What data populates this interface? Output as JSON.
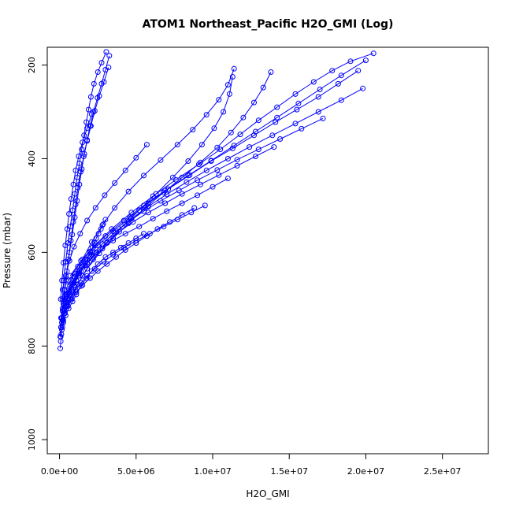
{
  "chart_data": {
    "type": "line",
    "title": "ATOM1 Northeast_Pacific H2O_GMI (Log)",
    "xlabel": "H2O_GMI",
    "ylabel": "Pressure (mbar)",
    "xlim": [
      -800000,
      28000000
    ],
    "ylim": [
      1030,
      162
    ],
    "y_reversed": true,
    "x_ticks": [
      0,
      5000000,
      10000000,
      15000000,
      20000000,
      25000000
    ],
    "x_tick_labels": [
      "0.0e+00",
      "5.0e+06",
      "1.0e+07",
      "1.5e+07",
      "2.0e+07",
      "2.5e+07"
    ],
    "y_ticks": [
      200,
      400,
      600,
      800,
      1000
    ],
    "y_tick_labels": [
      "200",
      "400",
      "600",
      "800",
      "1000"
    ],
    "grid": false,
    "series_color": "#0000ff",
    "marker": "open-circle",
    "series": [
      {
        "x": [
          50000,
          80000,
          120000,
          180000,
          250000,
          320000,
          420000,
          520000,
          650000,
          800000,
          950000,
          1100000,
          1250000,
          1400000,
          1600000,
          1800000,
          2000000,
          2150000,
          2300000,
          2400000,
          2550000,
          2700000,
          2850000,
          3000000
        ],
        "y": [
          805,
          790,
          775,
          760,
          745,
          730,
          715,
          700,
          690,
          680,
          670,
          660,
          650,
          640,
          628,
          615,
          600,
          590,
          580,
          570,
          560,
          550,
          540,
          530
        ]
      },
      {
        "x": [
          80000,
          150000,
          250000,
          400000,
          600000,
          850000,
          1100000,
          1400000,
          1750000,
          2100000,
          2500000,
          3000000,
          3500000,
          4000000,
          4500000,
          5000000,
          5500000
        ],
        "y": [
          780,
          765,
          750,
          735,
          720,
          705,
          690,
          672,
          655,
          640,
          625,
          610,
          600,
          590,
          580,
          570,
          560
        ]
      },
      {
        "x": [
          100000,
          200000,
          350000,
          550000,
          800000,
          1100000,
          1500000,
          2000000,
          2500000,
          3100000,
          3700000,
          4300000,
          5000000,
          5700000,
          6400000,
          7200000,
          8000000,
          8800000
        ],
        "y": [
          760,
          745,
          730,
          715,
          700,
          685,
          670,
          655,
          640,
          625,
          610,
          595,
          580,
          565,
          550,
          535,
          520,
          505
        ]
      },
      {
        "x": [
          150000,
          300000,
          500000,
          750000,
          1050000,
          1400000,
          1800000,
          2300000,
          2900000,
          3500000,
          4200000,
          5000000,
          5900000,
          6800000,
          7700000,
          8600000,
          9500000
        ],
        "y": [
          740,
          725,
          710,
          695,
          680,
          665,
          650,
          635,
          620,
          605,
          590,
          575,
          560,
          545,
          530,
          515,
          500
        ]
      },
      {
        "x": [
          200000,
          400000,
          650000,
          950000,
          1300000,
          1700000,
          2200000,
          2800000,
          3500000,
          4300000,
          5200000,
          6100000,
          7000000,
          8000000,
          9000000,
          10000000,
          11000000
        ],
        "y": [
          725,
          705,
          685,
          665,
          645,
          628,
          610,
          592,
          575,
          560,
          545,
          528,
          512,
          495,
          478,
          460,
          442
        ]
      },
      {
        "x": [
          250000,
          500000,
          850000,
          1250000,
          1800000,
          2400000,
          3100000,
          3900000,
          4800000,
          5800000,
          6900000,
          8000000,
          9200000,
          10400000,
          11600000,
          12800000,
          14000000
        ],
        "y": [
          710,
          690,
          668,
          645,
          622,
          600,
          578,
          556,
          535,
          515,
          495,
          475,
          455,
          435,
          415,
          395,
          375
        ]
      },
      {
        "x": [
          300000,
          600000,
          1000000,
          1500000,
          2100000,
          2800000,
          3600000,
          4500000,
          5500000,
          6600000,
          7800000,
          9000000,
          10300000,
          11600000,
          13000000,
          14400000,
          15800000,
          17200000
        ],
        "y": [
          700,
          678,
          655,
          630,
          605,
          582,
          558,
          535,
          512,
          490,
          468,
          446,
          424,
          402,
          380,
          358,
          336,
          314
        ]
      },
      {
        "x": [
          400000,
          800000,
          1300000,
          2000000,
          2800000,
          3700000,
          4700000,
          5800000,
          7000000,
          8300000,
          9600000,
          11000000,
          12400000,
          13900000,
          15400000,
          16900000,
          18400000,
          19800000
        ],
        "y": [
          690,
          665,
          638,
          610,
          582,
          555,
          528,
          502,
          476,
          450,
          425,
          400,
          375,
          350,
          325,
          300,
          275,
          250
        ]
      },
      {
        "x": [
          500000,
          1000000,
          1700000,
          2500000,
          3500000,
          4600000,
          5800000,
          7100000,
          8500000,
          9900000,
          11300000,
          12700000,
          14100000,
          15500000,
          16900000,
          18200000,
          19500000
        ],
        "y": [
          672,
          645,
          615,
          585,
          555,
          525,
          495,
          465,
          435,
          405,
          378,
          350,
          322,
          295,
          268,
          240,
          212
        ]
      },
      {
        "x": [
          600000,
          1200000,
          2000000,
          3000000,
          4200000,
          5500000,
          6900000,
          8400000,
          9900000,
          11400000,
          12800000,
          14200000,
          15600000,
          17000000,
          18400000,
          20000000
        ],
        "y": [
          660,
          630,
          598,
          565,
          532,
          500,
          468,
          436,
          404,
          372,
          342,
          312,
          282,
          252,
          222,
          190
        ]
      },
      {
        "x": [
          700000,
          1400000,
          2300000,
          3400000,
          4700000,
          6100000,
          7600000,
          9100000,
          10500000,
          11800000,
          13000000,
          14200000,
          15400000,
          16600000,
          17800000,
          19000000,
          20500000
        ],
        "y": [
          650,
          618,
          585,
          550,
          515,
          480,
          445,
          412,
          380,
          348,
          318,
          290,
          262,
          236,
          212,
          192,
          175
        ]
      },
      {
        "x": [
          350000,
          700000,
          1200000,
          1800000,
          2600000,
          3500000,
          4500000,
          5600000,
          6800000,
          8000000,
          9200000,
          10300000,
          11200000,
          12000000,
          12700000,
          13300000,
          13800000
        ],
        "y": [
          730,
          700,
          668,
          635,
          602,
          570,
          538,
          505,
          472,
          440,
          408,
          376,
          344,
          312,
          280,
          248,
          215
        ]
      },
      {
        "x": [
          450000,
          900000,
          1500000,
          2200000,
          3100000,
          4100000,
          5200000,
          6300000,
          7400000,
          8400000,
          9300000,
          10100000,
          10700000,
          11100000,
          11300000
        ],
        "y": [
          715,
          685,
          650,
          615,
          580,
          545,
          510,
          475,
          440,
          405,
          370,
          335,
          300,
          262,
          225
        ]
      },
      {
        "x": [
          300000,
          600000,
          1000000,
          1500000,
          2100000,
          2800000,
          3600000,
          4500000,
          5500000,
          6600000,
          7700000,
          8700000,
          9600000,
          10400000,
          11000000,
          11400000
        ],
        "y": [
          720,
          688,
          652,
          615,
          578,
          542,
          505,
          470,
          436,
          403,
          370,
          338,
          306,
          274,
          242,
          208
        ]
      },
      {
        "x": [
          200000,
          400000,
          650000,
          950000,
          1350000,
          1800000,
          2350000,
          2950000,
          3600000,
          4300000,
          5000000,
          5700000
        ],
        "y": [
          680,
          650,
          618,
          588,
          560,
          532,
          505,
          478,
          452,
          425,
          398,
          370
        ]
      },
      {
        "x": [
          50000,
          100000,
          180000,
          280000,
          400000,
          550000,
          700000,
          850000,
          1000000,
          1150000,
          1300000,
          1450000,
          1600000,
          1750000,
          1900000,
          2050000,
          2250000,
          2500000,
          2750000,
          3050000
        ],
        "y": [
          780,
          740,
          700,
          660,
          620,
          580,
          545,
          510,
          475,
          440,
          410,
          380,
          350,
          322,
          295,
          268,
          240,
          215,
          195,
          172
        ]
      },
      {
        "x": [
          100000,
          200000,
          330000,
          480000,
          650000,
          830000,
          1000000,
          1150000,
          1300000,
          1450000,
          1620000,
          1800000,
          2000000,
          2220000,
          2480000,
          2750000,
          3000000,
          3250000
        ],
        "y": [
          760,
          720,
          680,
          640,
          600,
          562,
          525,
          490,
          455,
          422,
          390,
          360,
          330,
          300,
          270,
          240,
          210,
          180
        ]
      },
      {
        "x": [
          150000,
          280000,
          420000,
          580000,
          740000,
          900000,
          1050000,
          1200000,
          1380000,
          1580000,
          1800000,
          2050000,
          2300000,
          2600000,
          2900000,
          3200000
        ],
        "y": [
          750,
          705,
          660,
          615,
          575,
          535,
          498,
          462,
          428,
          395,
          362,
          330,
          298,
          266,
          236,
          205
        ]
      },
      {
        "x": [
          80000,
          160000,
          260000,
          380000,
          500000,
          620000,
          760000,
          900000,
          1050000,
          1250000,
          1500000,
          1800000,
          2100000
        ],
        "y": [
          700,
          660,
          622,
          585,
          550,
          518,
          486,
          455,
          425,
          395,
          365,
          335,
          305
        ]
      }
    ]
  }
}
